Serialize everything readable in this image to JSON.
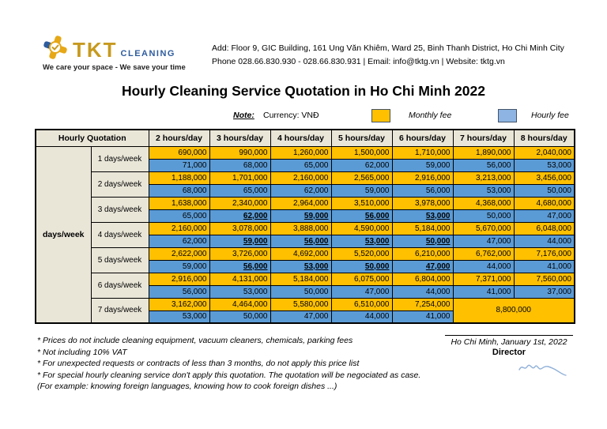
{
  "header": {
    "logo": {
      "brand_primary": "TKT",
      "brand_secondary": "CLEANING",
      "tagline": "We care your space - We save your time"
    },
    "address_line1": "Add: Floor 9, GIC Building, 161 Ung Văn Khiêm, Ward 25, Binh Thanh District, Ho Chi Minh City",
    "address_line2": "Phone 028.66.830.930 - 028.66.830.931 | Email: info@tktg.vn | Website: tktg.vn"
  },
  "title": "Hourly Cleaning Service Quotation in Ho Chi Minh 2022",
  "note": {
    "label": "Note:",
    "currency": "Currency: VNĐ",
    "legend": [
      {
        "label": "Monthly fee",
        "color": "#FFC000"
      },
      {
        "label": "Hourly fee",
        "color": "#8DB4E2"
      }
    ]
  },
  "table": {
    "corner_header": "Hourly Quotation",
    "row_axis_label": "days/week",
    "column_headers": [
      "2 hours/day",
      "3 hours/day",
      "4 hours/day",
      "5 hours/day",
      "6 hours/day",
      "7 hours/day",
      "8 hours/day"
    ],
    "rows": [
      {
        "label": "1 days/week",
        "monthly": [
          "690,000",
          "990,000",
          "1,260,000",
          "1,500,000",
          "1,710,000",
          "1,890,000",
          "2,040,000"
        ],
        "hourly": [
          "71,000",
          "68,000",
          "65,000",
          "62,000",
          "59,000",
          "56,000",
          "53,000"
        ],
        "hourly_emphasis": []
      },
      {
        "label": "2 days/week",
        "monthly": [
          "1,188,000",
          "1,701,000",
          "2,160,000",
          "2,565,000",
          "2,916,000",
          "3,213,000",
          "3,456,000"
        ],
        "hourly": [
          "68,000",
          "65,000",
          "62,000",
          "59,000",
          "56,000",
          "53,000",
          "50,000"
        ],
        "hourly_emphasis": []
      },
      {
        "label": "3 days/week",
        "monthly": [
          "1,638,000",
          "2,340,000",
          "2,964,000",
          "3,510,000",
          "3,978,000",
          "4,368,000",
          "4,680,000"
        ],
        "hourly": [
          "65,000",
          "62,000",
          "59,000",
          "56,000",
          "53,000",
          "50,000",
          "47,000"
        ],
        "hourly_emphasis": [
          1,
          2,
          3,
          4
        ]
      },
      {
        "label": "4 days/week",
        "monthly": [
          "2,160,000",
          "3,078,000",
          "3,888,000",
          "4,590,000",
          "5,184,000",
          "5,670,000",
          "6,048,000"
        ],
        "hourly": [
          "62,000",
          "59,000",
          "56,000",
          "53,000",
          "50,000",
          "47,000",
          "44,000"
        ],
        "hourly_emphasis": [
          1,
          2,
          3,
          4
        ]
      },
      {
        "label": "5 days/week",
        "monthly": [
          "2,622,000",
          "3,726,000",
          "4,692,000",
          "5,520,000",
          "6,210,000",
          "6,762,000",
          "7,176,000"
        ],
        "hourly": [
          "59,000",
          "56,000",
          "53,000",
          "50,000",
          "47,000",
          "44,000",
          "41,000"
        ],
        "hourly_emphasis": [
          1,
          2,
          3,
          4
        ]
      },
      {
        "label": "6 days/week",
        "monthly": [
          "2,916,000",
          "4,131,000",
          "5,184,000",
          "6,075,000",
          "6,804,000",
          "7,371,000",
          "7,560,000"
        ],
        "hourly": [
          "56,000",
          "53,000",
          "50,000",
          "47,000",
          "44,000",
          "41,000",
          "37,000"
        ],
        "hourly_emphasis": []
      },
      {
        "label": "7 days/week",
        "monthly": [
          "3,162,000",
          "4,464,000",
          "5,580,000",
          "6,510,000",
          "7,254,000"
        ],
        "hourly": [
          "53,000",
          "50,000",
          "47,000",
          "44,000",
          "41,000"
        ],
        "hourly_emphasis": [],
        "merged_cell": "8,800,000"
      }
    ]
  },
  "footnotes": [
    "* Prices do not include cleaning equipment, vacuum cleaners, chemicals, parking fees",
    "* Not including 10% VAT",
    "* For unexpected requests or contracts of less than 3 months, do not apply this price list",
    "* For special hourly cleaning service don't apply this quotation. The quotation will be negociated as case.",
    "(For example: knowing foreign languages, knowing how to cook foreign dishes ...)"
  ],
  "signature": {
    "place_date": "Ho Chi Minh, January 1st, 2022",
    "title": "Director"
  },
  "colors": {
    "monthly_fee": "#FFC000",
    "hourly_fee": "#5B9BD5",
    "legend_hourly": "#8DB4E2",
    "header_cell": "#E9E6D8",
    "brand_gold": "#C79A1E",
    "brand_blue": "#2E5C9E"
  }
}
